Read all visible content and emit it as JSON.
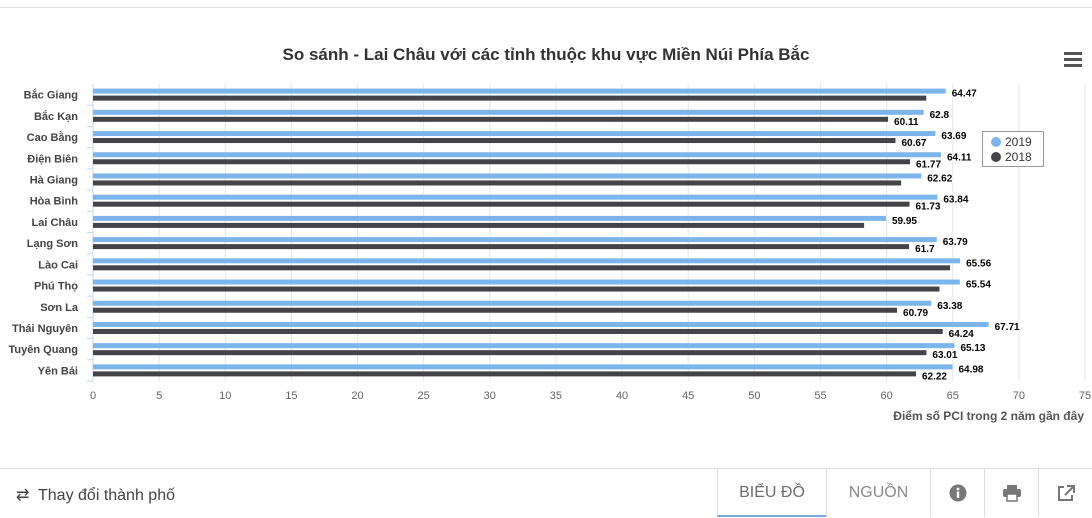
{
  "chart_data": {
    "type": "bar",
    "orientation": "horizontal",
    "title": "So sánh - Lai Châu với các tỉnh thuộc khu vực Miền Núi Phía Bắc",
    "xlabel": "Điểm số PCI trong 2 năm gần đây",
    "xlim": [
      0,
      75
    ],
    "x_ticks": [
      "0",
      "5",
      "10",
      "15",
      "20",
      "25",
      "30",
      "35",
      "40",
      "45",
      "50",
      "55",
      "60",
      "65",
      "70",
      "75"
    ],
    "categories": [
      "Bắc Giang",
      "Bắc Kạn",
      "Cao Bằng",
      "Điện Biên",
      "Hà Giang",
      "Hòa Bình",
      "Lai Châu",
      "Lạng Sơn",
      "Lào Cai",
      "Phú Thọ",
      "Sơn La",
      "Thái Nguyên",
      "Tuyên Quang",
      "Yên Bái"
    ],
    "series": [
      {
        "name": "2019",
        "color": "#7cb5ec",
        "values": [
          64.47,
          62.8,
          63.69,
          64.11,
          62.62,
          63.84,
          59.95,
          63.79,
          65.56,
          65.54,
          63.38,
          67.71,
          65.13,
          64.98
        ],
        "labels": [
          "64.47",
          "62.8",
          "63.69",
          "64.11",
          "62.62",
          "63.84",
          "59.95",
          "63.79",
          "65.56",
          "65.54",
          "63.38",
          "67.71",
          "65.13",
          "64.98"
        ]
      },
      {
        "name": "2018",
        "color": "#434348",
        "values": [
          63.0,
          60.11,
          60.67,
          61.77,
          61.1,
          61.73,
          58.3,
          61.7,
          64.8,
          64.0,
          60.79,
          64.24,
          63.01,
          62.22
        ],
        "labels": [
          "",
          "60.11",
          "60.67",
          "61.77",
          "",
          "61.73",
          "",
          "61.7",
          "",
          "",
          "60.79",
          "64.24",
          "63.01",
          "62.22"
        ]
      }
    ],
    "grid": true,
    "legend_position": "right"
  },
  "bottom_bar": {
    "change_city": "Thay đổi thành phố",
    "tab_chart": "BIỂU ĐỒ",
    "tab_source": "NGUỒN"
  }
}
